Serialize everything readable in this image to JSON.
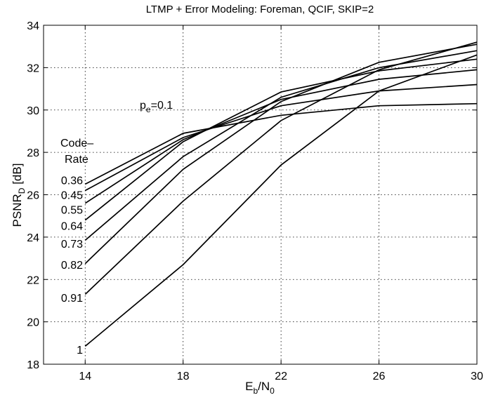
{
  "chart_data": {
    "type": "line",
    "title": "LTMP + Error Modeling: Foreman, QCIF, SKIP=2",
    "xlabel": {
      "main": "E",
      "sub1": "b",
      "mid": "/N",
      "sub2": "0"
    },
    "ylabel": {
      "main": "PSNR",
      "sub": "D",
      "unit": " [dB]"
    },
    "xlim": [
      12.3,
      30
    ],
    "ylim": [
      18,
      34
    ],
    "xticks": [
      14,
      18,
      22,
      26,
      30
    ],
    "yticks": [
      18,
      20,
      22,
      24,
      26,
      28,
      30,
      32,
      34
    ],
    "grid": true,
    "x": [
      14,
      18,
      22,
      26,
      30
    ],
    "annotation": {
      "main": "p",
      "sub": "e",
      "rest": "=0.1"
    },
    "code_rate_heading": [
      "Code–",
      "Rate"
    ],
    "series": [
      {
        "name": "0.36",
        "values": [
          26.5,
          28.9,
          29.75,
          30.2,
          30.3
        ]
      },
      {
        "name": "0.45",
        "values": [
          26.2,
          28.7,
          30.2,
          30.9,
          31.2
        ]
      },
      {
        "name": "0.55",
        "values": [
          25.6,
          28.6,
          30.5,
          31.45,
          31.9
        ]
      },
      {
        "name": "0.64",
        "values": [
          24.8,
          28.5,
          30.85,
          31.85,
          32.4
        ]
      },
      {
        "name": "0.73",
        "values": [
          23.85,
          27.8,
          30.6,
          32.0,
          32.8
        ]
      },
      {
        "name": "0.82",
        "values": [
          22.75,
          27.2,
          30.4,
          32.25,
          33.1
        ]
      },
      {
        "name": "0.91",
        "values": [
          21.3,
          25.7,
          29.5,
          31.9,
          33.2
        ]
      },
      {
        "name": "1",
        "values": [
          18.85,
          22.7,
          27.4,
          30.9,
          32.6
        ]
      }
    ],
    "series_label_y": [
      26.7,
      26.0,
      25.3,
      24.55,
      23.7,
      22.7,
      21.15,
      18.7
    ]
  }
}
